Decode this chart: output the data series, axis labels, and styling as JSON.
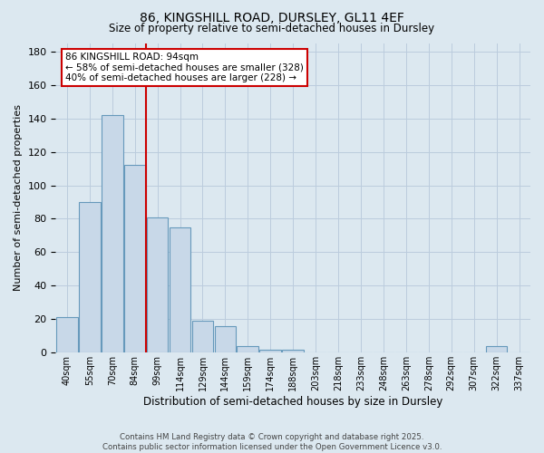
{
  "title_line1": "86, KINGSHILL ROAD, DURSLEY, GL11 4EF",
  "title_line2": "Size of property relative to semi-detached houses in Dursley",
  "xlabel": "Distribution of semi-detached houses by size in Dursley",
  "ylabel": "Number of semi-detached properties",
  "annotation_title": "86 KINGSHILL ROAD: 94sqm",
  "annotation_line2": "← 58% of semi-detached houses are smaller (328)",
  "annotation_line3": "40% of semi-detached houses are larger (228) →",
  "footer_line1": "Contains HM Land Registry data © Crown copyright and database right 2025.",
  "footer_line2": "Contains public sector information licensed under the Open Government Licence v3.0.",
  "bin_labels": [
    "40sqm",
    "55sqm",
    "70sqm",
    "84sqm",
    "99sqm",
    "114sqm",
    "129sqm",
    "144sqm",
    "159sqm",
    "174sqm",
    "188sqm",
    "203sqm",
    "218sqm",
    "233sqm",
    "248sqm",
    "263sqm",
    "278sqm",
    "292sqm",
    "307sqm",
    "322sqm",
    "337sqm"
  ],
  "bar_heights": [
    21,
    90,
    142,
    112,
    81,
    75,
    19,
    16,
    4,
    2,
    2,
    0,
    0,
    0,
    0,
    0,
    0,
    0,
    0,
    4,
    0
  ],
  "bar_color": "#c8d8e8",
  "bar_edge_color": "#6699bb",
  "marker_bin_index": 4,
  "marker_line_color": "#cc0000",
  "ylim": [
    0,
    185
  ],
  "yticks": [
    0,
    20,
    40,
    60,
    80,
    100,
    120,
    140,
    160,
    180
  ],
  "grid_color": "#bbccdd",
  "background_color": "#dce8f0",
  "annotation_box_edge_color": "#cc0000",
  "annotation_box_face_color": "#ffffff"
}
